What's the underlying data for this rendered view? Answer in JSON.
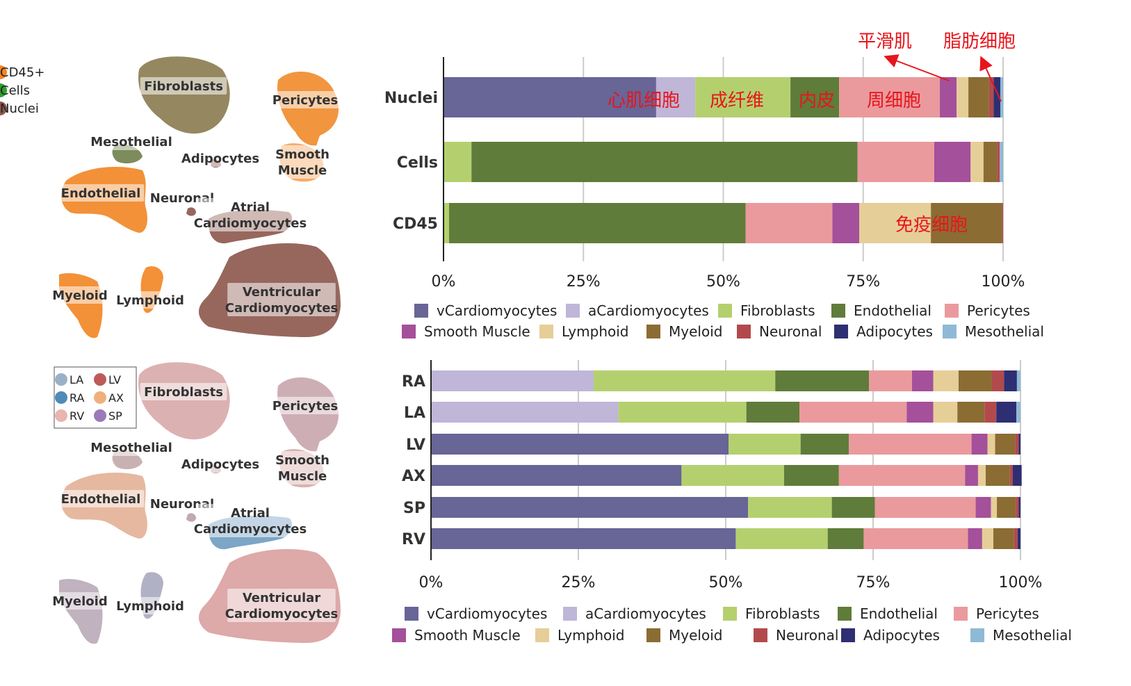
{
  "umap_top": {
    "legend": [
      {
        "label": "CD45+",
        "color": "#f28522"
      },
      {
        "label": "Cells",
        "color": "#2ca02c"
      },
      {
        "label": "Nuclei",
        "color": "#8c564b"
      }
    ],
    "clusters": [
      {
        "label": "Fibroblasts"
      },
      {
        "label": "Pericytes"
      },
      {
        "label": "Mesothelial"
      },
      {
        "label": "Adipocytes"
      },
      {
        "label": "Smooth Muscle"
      },
      {
        "label": "Endothelial"
      },
      {
        "label": "Neuronal"
      },
      {
        "label": "Atrial Cardiomyocytes"
      },
      {
        "label": "Myeloid"
      },
      {
        "label": "Lymphoid"
      },
      {
        "label": "Ventricular Cardiomyocytes"
      }
    ]
  },
  "umap_bottom": {
    "legend": [
      {
        "label": "LA",
        "color": "#9bb0c8"
      },
      {
        "label": "LV",
        "color": "#c05a5a"
      },
      {
        "label": "RA",
        "color": "#4f8bb8"
      },
      {
        "label": "AX",
        "color": "#f0b07c"
      },
      {
        "label": "RV",
        "color": "#eab4b0"
      },
      {
        "label": "SP",
        "color": "#9a7ab8"
      }
    ],
    "clusters": [
      {
        "label": "Fibroblasts"
      },
      {
        "label": "Pericytes"
      },
      {
        "label": "Mesothelial"
      },
      {
        "label": "Adipocytes"
      },
      {
        "label": "Smooth Muscle"
      },
      {
        "label": "Endothelial"
      },
      {
        "label": "Neuronal"
      },
      {
        "label": "Atrial Cardiomyocytes"
      },
      {
        "label": "Myeloid"
      },
      {
        "label": "Lymphoid"
      },
      {
        "label": "Ventricular Cardiomyocytes"
      }
    ]
  },
  "chart_data": [
    {
      "type": "bar",
      "orientation": "horizontal",
      "stacked": true,
      "categories": [
        "Nuclei",
        "Cells",
        "CD45"
      ],
      "xlim": [
        0,
        100
      ],
      "xticks": [
        "0%",
        "25%",
        "50%",
        "75%",
        "100%"
      ],
      "grid": true,
      "legend_position": "bottom",
      "series": [
        {
          "name": "vCardiomyocytes",
          "color": "#686597",
          "values": [
            38,
            0,
            0
          ]
        },
        {
          "name": "aCardiomyocytes",
          "color": "#bfb6d8",
          "values": [
            7,
            0,
            0
          ]
        },
        {
          "name": "Fibroblasts",
          "color": "#b4d06e",
          "values": [
            17,
            5,
            1
          ]
        },
        {
          "name": "Endothelial",
          "color": "#607c3a",
          "values": [
            8.7,
            69,
            53
          ]
        },
        {
          "name": "Pericytes",
          "color": "#ea9a9d",
          "values": [
            18,
            13.7,
            15.5
          ]
        },
        {
          "name": "Smooth Muscle",
          "color": "#a4509a",
          "values": [
            3,
            6.5,
            4.8
          ]
        },
        {
          "name": "Lymphoid",
          "color": "#e6ce98",
          "values": [
            2.1,
            2.3,
            12.8
          ]
        },
        {
          "name": "Myeloid",
          "color": "#8b6c33",
          "values": [
            3.7,
            2.4,
            12.7
          ]
        },
        {
          "name": "Neuronal",
          "color": "#b24a4d",
          "values": [
            0.8,
            0.5,
            0.2
          ]
        },
        {
          "name": "Adipocytes",
          "color": "#2e2f72",
          "values": [
            1.2,
            0,
            0
          ]
        },
        {
          "name": "Mesothelial",
          "color": "#8fbad6",
          "values": [
            0.5,
            0.6,
            0
          ]
        }
      ],
      "annotations": [
        {
          "text": "心肌细胞"
        },
        {
          "text": "成纤维"
        },
        {
          "text": "内皮"
        },
        {
          "text": "周细胞"
        },
        {
          "text": "平滑肌"
        },
        {
          "text": "脂肪细胞"
        },
        {
          "text": "免疫细胞"
        }
      ]
    },
    {
      "type": "bar",
      "orientation": "horizontal",
      "stacked": true,
      "categories": [
        "RA",
        "LA",
        "LV",
        "AX",
        "SP",
        "RV"
      ],
      "xlim": [
        0,
        100
      ],
      "xticks": [
        "0%",
        "25%",
        "50%",
        "75%",
        "100%"
      ],
      "grid": true,
      "legend_position": "bottom",
      "series": [
        {
          "name": "vCardiomyocytes",
          "color": "#686597",
          "values": [
            0,
            0,
            50.5,
            42.5,
            53.8,
            51.7
          ]
        },
        {
          "name": "aCardiomyocytes",
          "color": "#bfb6d8",
          "values": [
            27.6,
            31.8,
            0,
            0,
            0,
            0
          ]
        },
        {
          "name": "Fibroblasts",
          "color": "#b4d06e",
          "values": [
            30.8,
            21.7,
            12.2,
            17.4,
            14.2,
            15.6
          ]
        },
        {
          "name": "Endothelial",
          "color": "#607c3a",
          "values": [
            15.9,
            9,
            8.2,
            9.3,
            7.3,
            6.1
          ]
        },
        {
          "name": "Pericytes",
          "color": "#ea9a9d",
          "values": [
            7.3,
            18.2,
            20.8,
            21.4,
            17.1,
            17.7
          ]
        },
        {
          "name": "Smooth Muscle",
          "color": "#a4509a",
          "values": [
            3.6,
            4.5,
            2.7,
            2.2,
            2.6,
            2.4
          ]
        },
        {
          "name": "Lymphoid",
          "color": "#e6ce98",
          "values": [
            4.3,
            4.1,
            1.3,
            1.3,
            1,
            1.9
          ]
        },
        {
          "name": "Myeloid",
          "color": "#8b6c33",
          "values": [
            5.6,
            4.6,
            3.4,
            4.1,
            3.2,
            3.5
          ]
        },
        {
          "name": "Neuronal",
          "color": "#b24a4d",
          "values": [
            2.1,
            2,
            0.6,
            0.5,
            0.5,
            0.6
          ]
        },
        {
          "name": "Adipocytes",
          "color": "#2e2f72",
          "values": [
            2.2,
            3.4,
            0.3,
            1.5,
            0.3,
            0.5
          ]
        },
        {
          "name": "Mesothelial",
          "color": "#8fbad6",
          "values": [
            0.6,
            0.7,
            0,
            0,
            0,
            0
          ]
        }
      ]
    }
  ]
}
